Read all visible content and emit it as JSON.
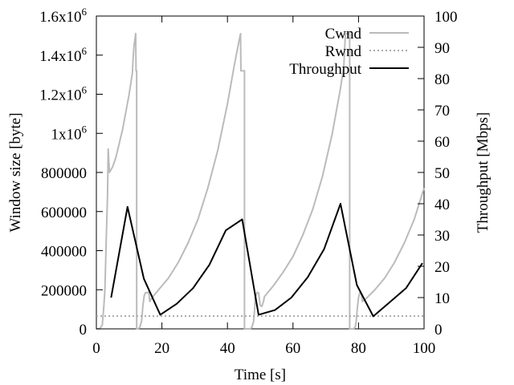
{
  "chart_data": {
    "type": "line",
    "xlabel": "Time [s]",
    "ylabel_left": "Window size [byte]",
    "ylabel_right": "Throughput [Mbps]",
    "xlim": [
      0,
      100
    ],
    "ylim_left": [
      0,
      1600000
    ],
    "ylim_right": [
      0,
      100
    ],
    "x_ticks": [
      0,
      20,
      40,
      60,
      80,
      100
    ],
    "y_left_ticks": [
      {
        "value": 0,
        "label": "0"
      },
      {
        "value": 200000,
        "label": "200000"
      },
      {
        "value": 400000,
        "label": "400000"
      },
      {
        "value": 600000,
        "label": "600000"
      },
      {
        "value": 800000,
        "label": "800000"
      },
      {
        "value": 1000000,
        "base": "1x10",
        "exp": "6"
      },
      {
        "value": 1200000,
        "base": "1.2x10",
        "exp": "6"
      },
      {
        "value": 1400000,
        "base": "1.4x10",
        "exp": "6"
      },
      {
        "value": 1600000,
        "base": "1.6x10",
        "exp": "6"
      }
    ],
    "y_right_ticks": [
      0,
      10,
      20,
      30,
      40,
      50,
      60,
      70,
      80,
      90,
      100
    ],
    "grid": false,
    "legend_position": "top-right",
    "series": [
      {
        "name": "Cwnd",
        "axis": "left",
        "color": "#bbbbbb",
        "style": "solid",
        "x": [
          0,
          1,
          1.8,
          2,
          2.3,
          2.6,
          2.8,
          3,
          3.2,
          3.4,
          3.6,
          4,
          5,
          6,
          7,
          8,
          9,
          10,
          11,
          11.2,
          11.5,
          12,
          12.1,
          12.3,
          12.3,
          12.8,
          13.3,
          13.8,
          14.2,
          14.6,
          15,
          15.6,
          16,
          16.3,
          17,
          19,
          22,
          25,
          28,
          31,
          34,
          37,
          40,
          42,
          43.5,
          44,
          44.1,
          45,
          45.1,
          45.2,
          45.2,
          46,
          47,
          47.5,
          48,
          48.3,
          48.5,
          49,
          49.5,
          50,
          50.5,
          51,
          51.3,
          54,
          57,
          60,
          63,
          66,
          69,
          72,
          74.5,
          75.5,
          76,
          76.1,
          77.2,
          77.3,
          77.3,
          78,
          78.5,
          79,
          79.3,
          79.6,
          80,
          80.4,
          80.8,
          81.2,
          82,
          85,
          88,
          91,
          94,
          97,
          100
        ],
        "y": [
          0,
          0,
          20000,
          60000,
          120000,
          200000,
          320000,
          450000,
          570000,
          680000,
          920000,
          800000,
          830000,
          880000,
          950000,
          1020000,
          1110000,
          1200000,
          1310000,
          1380000,
          1450000,
          1510000,
          1320000,
          1320000,
          0,
          0,
          10000,
          40000,
          120000,
          170000,
          185000,
          185000,
          190000,
          140000,
          160000,
          200000,
          260000,
          340000,
          440000,
          560000,
          720000,
          910000,
          1150000,
          1340000,
          1470000,
          1510000,
          1320000,
          1320000,
          1320000,
          1320000,
          0,
          0,
          0,
          10000,
          40000,
          100000,
          160000,
          185000,
          185000,
          120000,
          115000,
          140000,
          165000,
          220000,
          290000,
          370000,
          480000,
          610000,
          780000,
          1000000,
          1230000,
          1340000,
          1510000,
          1510000,
          1510000,
          1510000,
          0,
          0,
          0,
          10000,
          40000,
          100000,
          160000,
          185000,
          180000,
          140000,
          150000,
          200000,
          260000,
          340000,
          440000,
          560000,
          720000
        ]
      },
      {
        "name": "Rwnd",
        "axis": "left",
        "color": "#aaaaaa",
        "style": "dotted",
        "x": [
          0,
          100
        ],
        "y": [
          65000,
          65000
        ]
      },
      {
        "name": "Throughput",
        "axis": "right",
        "color": "#000000",
        "style": "solid",
        "x": [
          4.5,
          9.5,
          14.5,
          19.5,
          24.5,
          29.5,
          34.5,
          39.5,
          44.5,
          49.5,
          54.5,
          59.5,
          64.5,
          69.5,
          74.5,
          79.5,
          84.5,
          89.5,
          94.5,
          99.5
        ],
        "y": [
          10,
          39,
          16,
          4.5,
          8,
          13,
          20.5,
          31.5,
          35,
          4.5,
          6,
          10,
          16.5,
          25.5,
          40,
          14,
          4,
          8.5,
          13,
          21
        ]
      }
    ]
  }
}
